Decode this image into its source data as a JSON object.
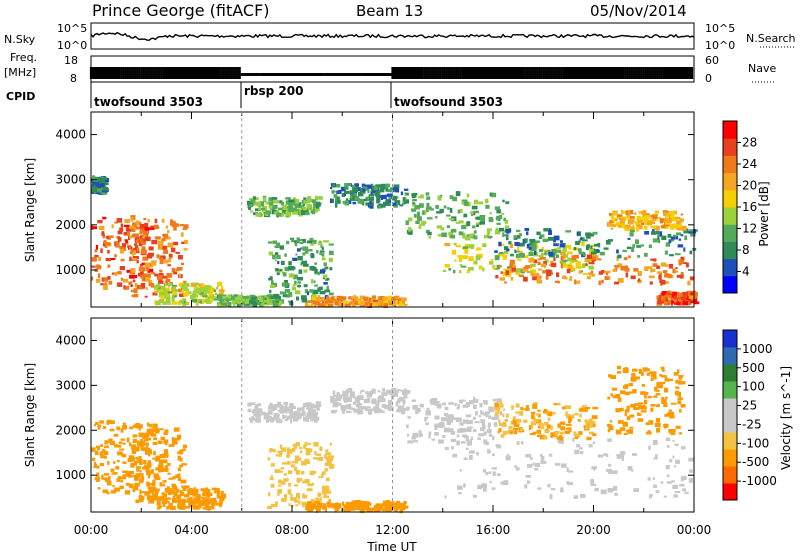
{
  "header": {
    "station": "Prince George (fitACF)",
    "beam": "Beam 13",
    "date": "05/Nov/2014"
  },
  "panels": {
    "nsky": {
      "label": "N.Sky",
      "ticks": [
        "10^5",
        "10^0"
      ],
      "right_ticks": [
        "10^5",
        "10^0"
      ],
      "right_label": "N.Search"
    },
    "freq": {
      "label": "Freq.",
      "unit": "[MHz]",
      "ticks": [
        "18",
        "8"
      ],
      "right_ticks": [
        "60",
        "0"
      ],
      "right_label": "Nave"
    },
    "cpid": {
      "label": "CPID",
      "segments": [
        {
          "name": "twofsound 3503",
          "start": 0,
          "end": 6
        },
        {
          "name": "rbsp 200",
          "start": 6,
          "end": 12
        },
        {
          "name": "twofsound 3503",
          "start": 12,
          "end": 24
        }
      ]
    }
  },
  "colors": {
    "power": [
      "#0000ff",
      "#1f4fb8",
      "#2e8b57",
      "#55a95a",
      "#9bd23c",
      "#f5d000",
      "#f5a623",
      "#f07a1a",
      "#e8401e",
      "#ff0000"
    ],
    "velocity": [
      "#ff0000",
      "#ff6a00",
      "#ff9900",
      "#f3c242",
      "#c8c8c8",
      "#c8c8c8",
      "#55b54f",
      "#2e7d32",
      "#2f6bb0",
      "#1a2fd0"
    ]
  },
  "chart_data": [
    {
      "type": "heatmap",
      "title": "",
      "xlabel": "Time UT",
      "ylabel": "Slant Range [km]",
      "xlim": [
        0,
        24
      ],
      "ylim": [
        180,
        4500
      ],
      "xticks": [
        "00:00",
        "04:00",
        "08:00",
        "12:00",
        "16:00",
        "20:00",
        "00:00"
      ],
      "yticks": [
        1000,
        2000,
        3000,
        4000
      ],
      "colorbar": {
        "label": "Power [dB]",
        "range": [
          0,
          32
        ],
        "ticks": [
          4,
          8,
          12,
          16,
          20,
          24,
          28
        ]
      },
      "regions": [
        {
          "t": [
            0.0,
            2.4
          ],
          "r": [
            600,
            2200
          ],
          "value": 26
        },
        {
          "t": [
            0.0,
            0.5
          ],
          "r": [
            2700,
            3050
          ],
          "value": 8
        },
        {
          "t": [
            1.5,
            3.7
          ],
          "r": [
            400,
            2100
          ],
          "value": 24
        },
        {
          "t": [
            2.5,
            5.2
          ],
          "r": [
            250,
            700
          ],
          "value": 16
        },
        {
          "t": [
            5.0,
            7.5
          ],
          "r": [
            220,
            420
          ],
          "value": 12
        },
        {
          "t": [
            6.2,
            9.0
          ],
          "r": [
            2200,
            2600
          ],
          "value": 12
        },
        {
          "t": [
            7.0,
            9.5
          ],
          "r": [
            250,
            1700
          ],
          "value": 10
        },
        {
          "t": [
            8.5,
            12.5
          ],
          "r": [
            200,
            400
          ],
          "value": 22
        },
        {
          "t": [
            9.5,
            12.5
          ],
          "r": [
            2400,
            2900
          ],
          "value": 8
        },
        {
          "t": [
            12.5,
            16.5
          ],
          "r": [
            1700,
            2700
          ],
          "value": 12
        },
        {
          "t": [
            14.0,
            20.0
          ],
          "r": [
            900,
            1600
          ],
          "value": 16
        },
        {
          "t": [
            16.0,
            24.0
          ],
          "r": [
            700,
            1300
          ],
          "value": 24
        },
        {
          "t": [
            16.0,
            24.0
          ],
          "r": [
            1300,
            1900
          ],
          "value": 8
        },
        {
          "t": [
            22.5,
            24.0
          ],
          "r": [
            250,
            500
          ],
          "value": 26
        },
        {
          "t": [
            20.5,
            23.5
          ],
          "r": [
            1900,
            2300
          ],
          "value": 20
        }
      ]
    },
    {
      "type": "heatmap",
      "title": "",
      "xlabel": "Time UT",
      "ylabel": "Slant Range [km]",
      "xlim": [
        0,
        24
      ],
      "ylim": [
        180,
        4500
      ],
      "xticks": [
        "00:00",
        "04:00",
        "08:00",
        "12:00",
        "16:00",
        "20:00",
        "00:00"
      ],
      "yticks": [
        1000,
        2000,
        3000,
        4000
      ],
      "colorbar": {
        "label": "Velocity [m s^-1]",
        "ticks": [
          1000,
          500,
          100,
          25,
          -25,
          -100,
          -500,
          -1000
        ]
      },
      "regions": [
        {
          "t": [
            0.0,
            2.5
          ],
          "r": [
            600,
            2200
          ],
          "value": -300
        },
        {
          "t": [
            1.5,
            3.7
          ],
          "r": [
            400,
            2100
          ],
          "value": -300
        },
        {
          "t": [
            2.5,
            5.2
          ],
          "r": [
            250,
            700
          ],
          "value": -150
        },
        {
          "t": [
            6.2,
            9.0
          ],
          "r": [
            2200,
            2600
          ],
          "value": 0
        },
        {
          "t": [
            7.0,
            9.5
          ],
          "r": [
            250,
            1700
          ],
          "value": -50
        },
        {
          "t": [
            8.5,
            12.5
          ],
          "r": [
            200,
            400
          ],
          "value": -150
        },
        {
          "t": [
            9.5,
            12.5
          ],
          "r": [
            2400,
            2900
          ],
          "value": 0
        },
        {
          "t": [
            12.5,
            16.5
          ],
          "r": [
            1700,
            2700
          ],
          "value": 0
        },
        {
          "t": [
            14.0,
            24.0
          ],
          "r": [
            500,
            1800
          ],
          "value": 0
        },
        {
          "t": [
            16.0,
            20.0
          ],
          "r": [
            1800,
            2600
          ],
          "value": -100
        },
        {
          "t": [
            20.5,
            23.5
          ],
          "r": [
            1900,
            3400
          ],
          "value": -150
        }
      ]
    }
  ]
}
